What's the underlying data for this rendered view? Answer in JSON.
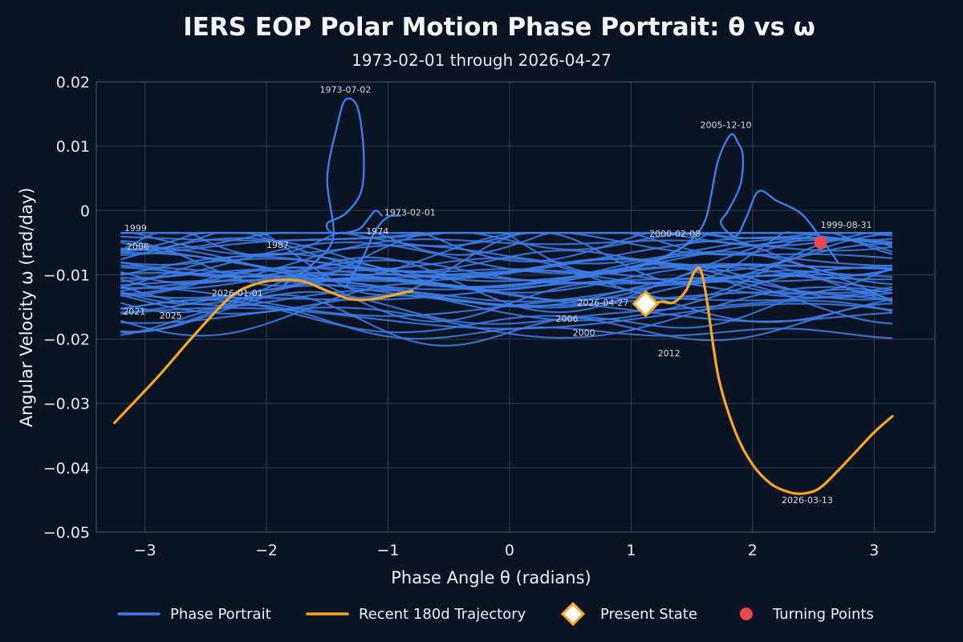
{
  "chart_data": {
    "type": "line",
    "title": "IERS EOP Polar Motion Phase Portrait: θ vs ω",
    "subtitle": "1973-02-01 through 2026-04-27",
    "xlabel": "Phase Angle θ (radians)",
    "ylabel": "Angular Velocity ω (rad/day)",
    "xlim": [
      -3.4,
      3.5
    ],
    "ylim": [
      -0.05,
      0.02
    ],
    "x_ticks": [
      {
        "value": -3,
        "label": "−3"
      },
      {
        "value": -2,
        "label": "−2"
      },
      {
        "value": -1,
        "label": "−1"
      },
      {
        "value": 0,
        "label": "0"
      },
      {
        "value": 1,
        "label": "1"
      },
      {
        "value": 2,
        "label": "2"
      },
      {
        "value": 3,
        "label": "3"
      }
    ],
    "y_ticks": [
      {
        "value": 0.02,
        "label": "0.02"
      },
      {
        "value": 0.01,
        "label": "0.01"
      },
      {
        "value": 0,
        "label": "0"
      },
      {
        "value": -0.01,
        "label": "−0.01"
      },
      {
        "value": -0.02,
        "label": "−0.02"
      },
      {
        "value": -0.03,
        "label": "−0.03"
      },
      {
        "value": -0.04,
        "label": "−0.04"
      },
      {
        "value": -0.05,
        "label": "−0.05"
      }
    ],
    "grid": true,
    "legend_position": "bottom",
    "colors": {
      "portrait": "#3d7de6",
      "recent": "#f5a623",
      "present": "#ffffff",
      "present_edge": "#f5a623",
      "turning": "#e8474d"
    },
    "portrait_band": {
      "x_start": -3.2,
      "x_end": 3.15,
      "cycles": 44,
      "center": -0.0105,
      "spread": 0.0095
    },
    "series": [
      {
        "name": "Phase Portrait",
        "role": "portrait-excursion",
        "x": [
          -1.85,
          -1.6,
          -1.45,
          -1.5,
          -1.42,
          -1.35,
          -1.25,
          -1.2,
          -1.22,
          -1.35,
          -1.5,
          -1.45,
          -1.25,
          -1.15,
          -1.1,
          -1.05
        ],
        "y": [
          -0.0115,
          -0.008,
          -0.004,
          0.005,
          0.013,
          0.0172,
          0.016,
          0.009,
          0.003,
          -0.0005,
          -0.002,
          -0.0035,
          -0.003,
          -0.001,
          0.0,
          -0.0008
        ]
      },
      {
        "name": "Phase Portrait",
        "role": "portrait-excursion",
        "x": [
          -1.35,
          -1.2,
          -1.1,
          -1.0,
          -0.9
        ],
        "y": [
          -0.012,
          -0.007,
          -0.003,
          -0.001,
          -0.0008
        ]
      },
      {
        "name": "Phase Portrait",
        "role": "portrait-excursion",
        "x": [
          1.2,
          1.4,
          1.55,
          1.62,
          1.66,
          1.72,
          1.82,
          1.88,
          1.92,
          1.9,
          1.8,
          1.74,
          1.86,
          1.95,
          2.05,
          2.2,
          2.4,
          2.55,
          2.7
        ],
        "y": [
          -0.008,
          -0.006,
          -0.0035,
          -0.001,
          0.0025,
          0.008,
          0.0118,
          0.0105,
          0.0085,
          0.004,
          0.0,
          -0.002,
          -0.004,
          -0.001,
          0.003,
          0.0015,
          -0.0005,
          -0.004,
          -0.008
        ]
      },
      {
        "name": "Recent 180d Trajectory",
        "x": [
          -3.25,
          -2.9,
          -2.6,
          -2.3,
          -2.1,
          -1.9,
          -1.7,
          -1.5,
          -1.3,
          -1.1,
          -0.8
        ],
        "y": [
          -0.033,
          -0.026,
          -0.0195,
          -0.0135,
          -0.0115,
          -0.0108,
          -0.011,
          -0.0125,
          -0.0138,
          -0.0137,
          -0.0125
        ]
      },
      {
        "name": "Recent 180d Trajectory",
        "x": [
          1.13,
          1.25,
          1.35,
          1.45,
          1.52,
          1.57,
          1.62,
          1.72,
          1.86,
          2.0,
          2.15,
          2.3,
          2.42,
          2.55,
          2.7,
          2.85,
          3.0,
          3.15
        ],
        "y": [
          -0.0145,
          -0.0142,
          -0.0143,
          -0.0125,
          -0.0096,
          -0.0092,
          -0.0135,
          -0.026,
          -0.0345,
          -0.0395,
          -0.0425,
          -0.0438,
          -0.044,
          -0.0432,
          -0.0405,
          -0.0375,
          -0.0345,
          -0.032
        ]
      }
    ],
    "markers": {
      "present_state": {
        "x": 1.12,
        "y": -0.0145
      },
      "turning_points": [
        {
          "x": 2.56,
          "y": -0.005
        }
      ]
    },
    "annotations": [
      {
        "text": "1973-07-02",
        "x": -1.35,
        "y": 0.0183,
        "anchor": "middle"
      },
      {
        "text": "1973-02-01",
        "x": -1.03,
        "y": -0.0008,
        "anchor": "start"
      },
      {
        "text": "1974",
        "x": -1.18,
        "y": -0.0037,
        "anchor": "start"
      },
      {
        "text": "1999",
        "x": -3.17,
        "y": -0.0032,
        "anchor": "start"
      },
      {
        "text": "2006",
        "x": -3.15,
        "y": -0.0061,
        "anchor": "start"
      },
      {
        "text": "1987",
        "x": -2.0,
        "y": -0.0058,
        "anchor": "start"
      },
      {
        "text": "2026-01-01",
        "x": -2.45,
        "y": -0.0133,
        "anchor": "start"
      },
      {
        "text": "2021",
        "x": -3.18,
        "y": -0.0162,
        "anchor": "start"
      },
      {
        "text": "2025",
        "x": -2.88,
        "y": -0.0168,
        "anchor": "start"
      },
      {
        "text": "2005-12-10",
        "x": 1.78,
        "y": 0.0128,
        "anchor": "middle"
      },
      {
        "text": "2000-02-08",
        "x": 1.15,
        "y": -0.0041,
        "anchor": "start"
      },
      {
        "text": "1999-08-31",
        "x": 2.56,
        "y": -0.0027,
        "anchor": "start"
      },
      {
        "text": "2026-04-27",
        "x": 0.98,
        "y": -0.0148,
        "anchor": "end"
      },
      {
        "text": "2006",
        "x": 0.38,
        "y": -0.0173,
        "anchor": "start"
      },
      {
        "text": "2000",
        "x": 0.52,
        "y": -0.0195,
        "anchor": "start"
      },
      {
        "text": "2012",
        "x": 1.22,
        "y": -0.0227,
        "anchor": "start"
      },
      {
        "text": "2026-03-13",
        "x": 2.45,
        "y": -0.0455,
        "anchor": "middle"
      }
    ],
    "legend": [
      {
        "label": "Phase Portrait",
        "kind": "line",
        "color": "#3d7de6"
      },
      {
        "label": "Recent 180d Trajectory",
        "kind": "line",
        "color": "#f5a623"
      },
      {
        "label": "Present State",
        "kind": "diamond",
        "color": "#ffffff"
      },
      {
        "label": "Turning Points",
        "kind": "dot",
        "color": "#e8474d"
      }
    ]
  }
}
